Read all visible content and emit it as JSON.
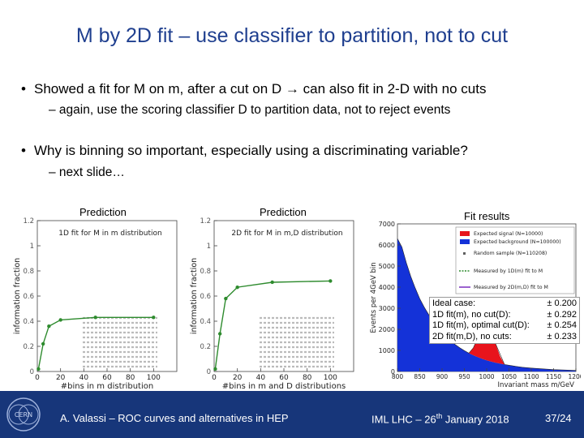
{
  "title": "M by 2D fit – use classifier to partition, not to cut",
  "bullets": [
    {
      "text": "Showed a fit for M on m, after a cut on D → can also fit in 2-D with no cuts",
      "sub": "– again, use the scoring classifier D to partition data, not to reject events"
    },
    {
      "text": "Why is binning so important, especially using a discriminating variable?",
      "sub": "– next slide…"
    }
  ],
  "captions": {
    "left": "Prediction",
    "middle": "Prediction",
    "right": "Fit results"
  },
  "chart_data": [
    {
      "type": "line",
      "title": "1D fit for M in m distribution",
      "xlabel": "#bins in m distribution",
      "ylabel": "information fraction",
      "xlim": [
        0,
        120
      ],
      "ylim": [
        0,
        1.2
      ],
      "xticks": [
        "0",
        "20",
        "40",
        "60",
        "80",
        "100"
      ],
      "yticks": [
        "0",
        "0.2",
        "0.4",
        "0.6",
        "0.8",
        "1",
        "1.2"
      ],
      "color": "#2e8b2e",
      "x": [
        1,
        5,
        10,
        20,
        50,
        100
      ],
      "y": [
        0.02,
        0.22,
        0.36,
        0.41,
        0.43,
        0.43
      ]
    },
    {
      "type": "line",
      "title": "2D fit for M in m,D distribution",
      "xlabel": "#bins in m and D distributions",
      "ylabel": "information fraction",
      "xlim": [
        0,
        120
      ],
      "ylim": [
        0,
        1.2
      ],
      "xticks": [
        "0",
        "20",
        "40",
        "60",
        "80",
        "100"
      ],
      "yticks": [
        "0",
        "0.2",
        "0.4",
        "0.6",
        "0.8",
        "1",
        "1.2"
      ],
      "color": "#2e8b2e",
      "x": [
        1,
        5,
        10,
        20,
        50,
        100
      ],
      "y": [
        0.02,
        0.3,
        0.58,
        0.67,
        0.71,
        0.72
      ]
    },
    {
      "type": "histogram",
      "xlabel": "Invariant mass m/GeV",
      "ylabel": "Events per 4GeV bin",
      "xlim": [
        800,
        1200
      ],
      "ylim": [
        0,
        7000
      ],
      "xticks": [
        "800",
        "850",
        "900",
        "950",
        "1000",
        "1050",
        "1100",
        "1150",
        "1200"
      ],
      "yticks": [
        "0",
        "1000",
        "2000",
        "3000",
        "4000",
        "5000",
        "6000",
        "7000"
      ],
      "series": [
        {
          "name": "Expected signal (N=10000)",
          "color": "#e8141c"
        },
        {
          "name": "Expected background (N=100000)",
          "color": "#1432d8"
        },
        {
          "name": "Random sample (N=110208)",
          "color": "#606060"
        },
        {
          "name": "Measured by 1D(m) fit to M",
          "color": "#2e8b2e"
        },
        {
          "name": "Measured by 2D(m,D) fit to M",
          "color": "#7b2fbf"
        }
      ],
      "background_x": [
        800,
        810,
        820,
        830,
        840,
        850,
        860,
        870,
        880,
        890,
        900,
        910,
        920,
        930,
        940,
        950,
        960,
        970,
        980,
        990,
        1000,
        1010,
        1020,
        1040,
        1060,
        1080,
        1100,
        1150,
        1200
      ],
      "background_y": [
        6300,
        5900,
        5150,
        4500,
        3950,
        3450,
        3050,
        2700,
        2380,
        2100,
        1850,
        1630,
        1440,
        1270,
        1120,
        990,
        870,
        770,
        680,
        600,
        530,
        470,
        420,
        330,
        260,
        200,
        160,
        90,
        50
      ],
      "signal_x": [
        960,
        970,
        980,
        990,
        1000,
        1010,
        1020,
        1030,
        1040
      ],
      "signal_y": [
        0,
        350,
        900,
        1350,
        1600,
        1350,
        900,
        350,
        0
      ]
    }
  ],
  "fit_results": [
    {
      "label": "Ideal case:",
      "value": "± 0.200"
    },
    {
      "label": "1D fit(m), no cut(D):",
      "value": "± 0.292"
    },
    {
      "label": "1D fit(m), optimal cut(D):",
      "value": "± 0.254"
    },
    {
      "label": "2D fit(m,D), no cuts:",
      "value": "± 0.233"
    }
  ],
  "footer": {
    "left": "A. Valassi – ROC curves and alternatives in HEP",
    "middle_prefix": "IML LHC – 26",
    "middle_sup": "th",
    "middle_suffix": " January 2018",
    "right": "37/24"
  },
  "logo_text": "CERN"
}
